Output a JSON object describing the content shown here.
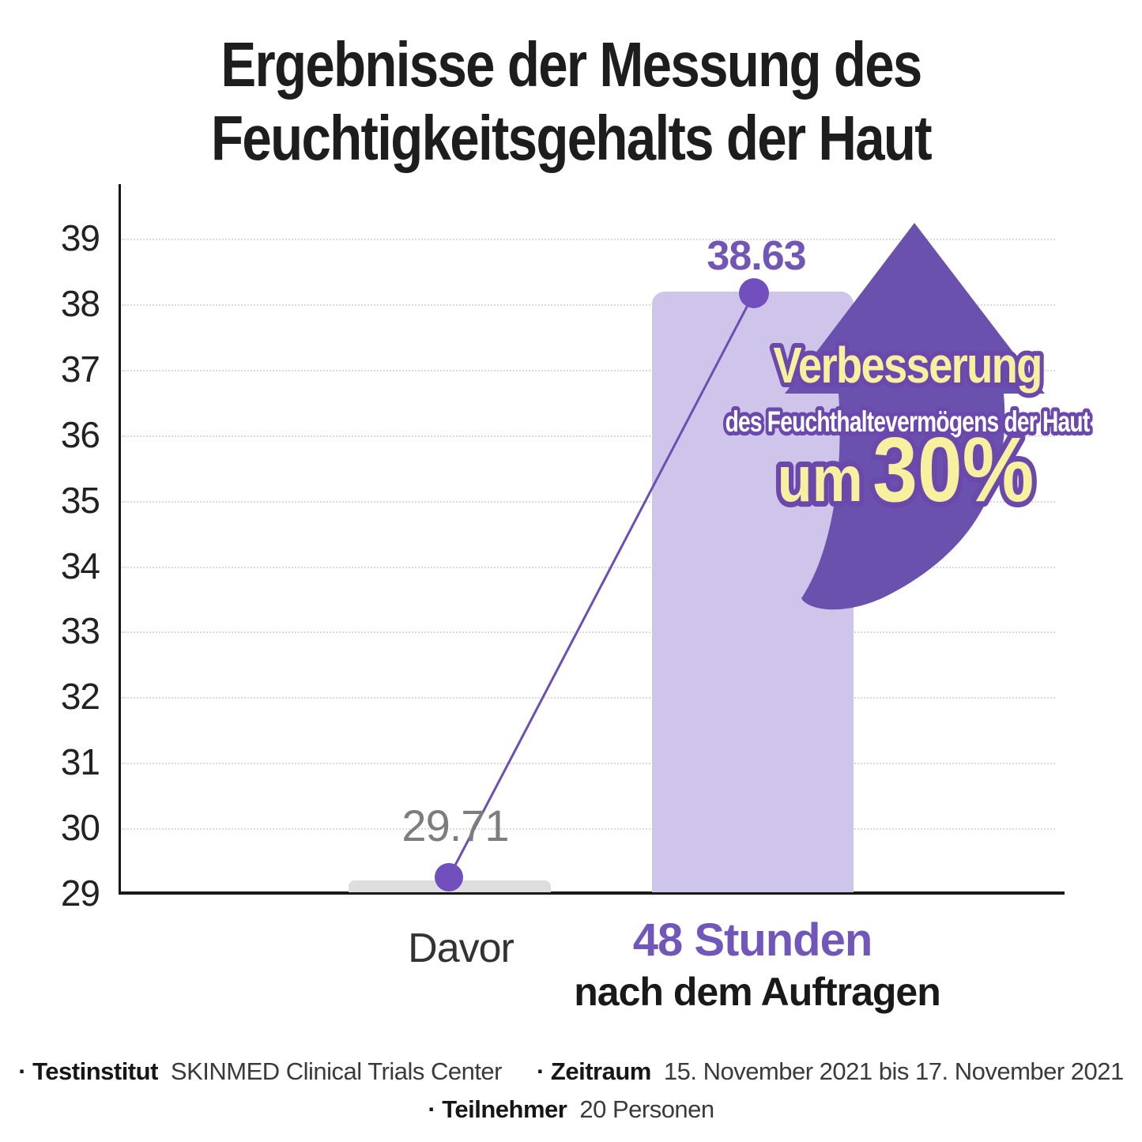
{
  "title": {
    "line1": "Ergebnisse der Messung des",
    "line2": "Feuchtigkeitsgehalts der Haut"
  },
  "chart_data": {
    "type": "bar",
    "categories": [
      "Davor",
      "48 Stunden nach dem Auftragen"
    ],
    "values": [
      29.71,
      38.63
    ],
    "series": [
      {
        "name": "Davor",
        "value": 29.71,
        "bar_color": "#dedede"
      },
      {
        "name": "48 Stunden nach dem Auftragen",
        "value": 38.63,
        "bar_color": "#cfc5ea"
      }
    ],
    "title": "Ergebnisse der Messung des Feuchtigkeitsgehalts der Haut",
    "xlabel": "",
    "ylabel": "",
    "ylim": [
      29,
      39
    ],
    "yticks": [
      29,
      30,
      31,
      32,
      33,
      34,
      35,
      36,
      37,
      38,
      39
    ],
    "grid": "horizontal-dotted",
    "legend": "none",
    "value_labels": {
      "before": "29.71",
      "after": "38.63"
    },
    "annotation": {
      "line1": "Verbesserung",
      "line2": "des Feuchthaltevermögens der Haut",
      "line3_small": "um",
      "line3_big": "30%"
    }
  },
  "x_axis": {
    "label_before": "Davor",
    "label_after_line1": "48 Stunden",
    "label_after_line2": "nach dem Auftragen"
  },
  "footer": {
    "institute_label": "· Testinstitut",
    "institute_value": "SKINMED Clinical Trials Center",
    "period_label": "· Zeitraum",
    "period_value": "15. November 2021 bis 17. November 2021",
    "participants_label": "· Teilnehmer",
    "participants_value": "20 Personen"
  },
  "colors": {
    "bar_before": "#dedede",
    "bar_after": "#cfc5ea",
    "dot": "#7150bd",
    "connector": "#6b4fb2",
    "arrow": "#6b51ae",
    "value_before_text": "#7d7d7d",
    "value_after_text": "#7156b5",
    "label_after_text": "#7257ba",
    "annotation_yellow": "#f7f09e",
    "annotation_outline": "#6a48ac",
    "axis": "#1a1a1a",
    "grid": "#d9d9d9"
  }
}
